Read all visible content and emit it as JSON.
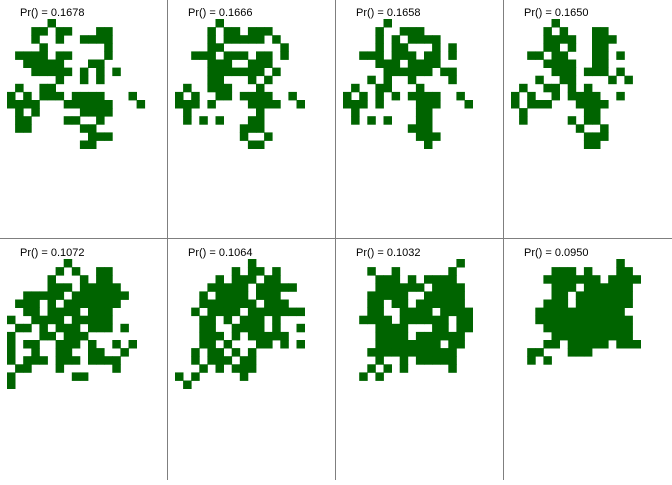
{
  "colors": {
    "pixel": "#006400",
    "background": "#ffffff",
    "divider": "#7f7f7f"
  },
  "panels": [
    {
      "label": "Pr() = 0.1678",
      "rows": [
        ".....#...........",
        "...##.##...##....",
        "...#..#..####....",
        "....#.......#....",
        ".####.##....#....",
        "..#####...##.....",
        "...#####.#.#.#...",
        "......#..#.#.....",
        ".#..##...........",
        "#.#.###.####...#.",
        "####...######...#",
        ".#.#.....####....",
        ".##....##..#.....",
        ".##......##......",
        "..........###....",
        ".........##......"
      ]
    },
    {
      "label": "Pr() = 0.1666",
      "rows": [
        ".....#...........",
        "....#.##.###.....",
        "....#.#####.#....",
        "....##.......#...",
        "..###.###.##.#...",
        "....###..###.....",
        "....#######.#....",
        "....##...#.#.....",
        ".#..###...#......",
        "#.#..##.####..#..",
        "###.#....####..#.",
        ".#........#......",
        ".#.#.#...##......",
        "........###......",
        "........#..#.....",
        ".........##......"
      ]
    },
    {
      "label": "Pr() = 0.1658",
      "rows": [
        ".....#...........",
        "....#..###.......",
        "....#.#.####.....",
        "....#.##...#.#...",
        "..###.###.##.#...",
        "....###.####.....",
        ".....######.##...",
        "...#.#..#....#...",
        ".#..##...#.......",
        "#.#.#.#.####..#..",
        "###.#....###...#.",
        ".#.......##......",
        ".#.#.#...##......",
        "........###......",
        ".........###.....",
        "..........#......"
      ]
    },
    {
      "label": "Pr() = 0.1650",
      "rows": [
        ".....#...........",
        "....#.#...##.....",
        "....####..###....",
        "....##.#..##.....",
        "..##.##...##.#...",
        "....####..##.....",
        ".....###.###.#...",
        "...#..##....#.#..",
        ".#..##.#.#.......",
        "#.#..#.####..#...",
        "#.###...####.....",
        ".#.......##......",
        ".#.....#.##......",
        "........#..#.....",
        ".........###.....",
        ".........##......"
      ]
    },
    {
      "label": "Pr() = 0.1072",
      "rows": [
        ".......#.........",
        "......#.#..##....",
        ".....#...#.##....",
        ".....###.#####...",
        "..#####.#######..",
        ".###.#.#######...",
        "..##.####.###....",
        "#..####.#####....",
        ".##.#.###.###.#..",
        "#...##.###.......",
        "#.##..###.#..#.#.",
        "#..#..##..##..#..",
        "#.###.###.####...",
        ".##...#......#...",
        "#.......##.......",
        "#................"
      ]
    },
    {
      "label": "Pr() = 0.1064",
      "rows": [
        ".........#.......",
        ".......#.##.#....",
        ".....#.###.##....",
        "....#####.#####..",
        "...#.####.###....",
        "...#######.###...",
        "..#.####.#######.",
        "...##.#.###.#....",
        "...##..####.#..#.",
        "...###.#.#####...",
        "...##.#...##.#.#.",
        "..#.##.#.#.......",
        "..#.###.##.......",
        "...#.#.###.......",
        "#.#.....#........",
        ".#..............."
      ]
    },
    {
      "label": "Pr() = 0.1032",
      "rows": [
        "..............#..",
        "...#..#......#...",
        "....###.#.####...",
        "....######.####..",
        "...#####..#####..",
        "...##.##.######..",
        "...##..####.####.",
        "..####.######.##.",
        "....####...##.##.",
        "....####.######..",
        "....########.##..",
        "...###########...",
        "....#..#.#####...",
        "...#.#.#.....#...",
        "..#.#............",
        ".................."
      ]
    },
    {
      "label": "Pr() = 0.0950",
      "rows": [
        ".............#...",
        ".....###.#...##..",
        "....#######.####.",
        ".....###.######..",
        ".....##.#######..",
        "....###.#######..",
        "...###########...",
        "...############..",
        "....###########..",
        ".....##########..",
        "....##.#####.###.",
        "..##...###.......",
        "..#.#............",
        ".................",
        ".................",
        "................."
      ]
    }
  ]
}
